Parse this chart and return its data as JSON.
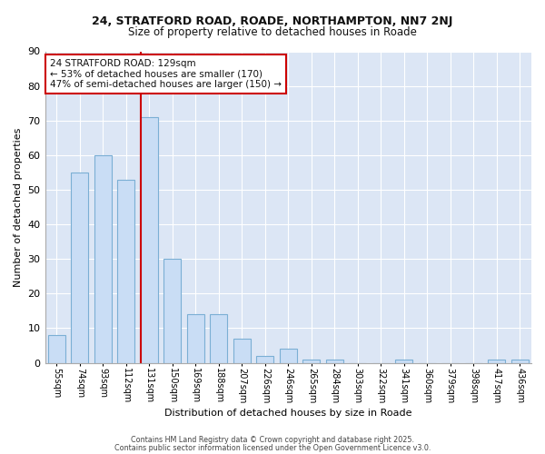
{
  "title_line1": "24, STRATFORD ROAD, ROADE, NORTHAMPTON, NN7 2NJ",
  "title_line2": "Size of property relative to detached houses in Roade",
  "xlabel": "Distribution of detached houses by size in Roade",
  "ylabel": "Number of detached properties",
  "categories": [
    "55sqm",
    "74sqm",
    "93sqm",
    "112sqm",
    "131sqm",
    "150sqm",
    "169sqm",
    "188sqm",
    "207sqm",
    "226sqm",
    "246sqm",
    "265sqm",
    "284sqm",
    "303sqm",
    "322sqm",
    "341sqm",
    "360sqm",
    "379sqm",
    "398sqm",
    "417sqm",
    "436sqm"
  ],
  "values": [
    8,
    55,
    60,
    53,
    71,
    30,
    14,
    14,
    7,
    2,
    4,
    1,
    1,
    0,
    0,
    1,
    0,
    0,
    0,
    1,
    1
  ],
  "bar_color": "#c9ddf5",
  "bar_edge_color": "#7bafd4",
  "red_line_index": 4,
  "red_line_color": "#cc0000",
  "annotation_text": "24 STRATFORD ROAD: 129sqm\n← 53% of detached houses are smaller (170)\n47% of semi-detached houses are larger (150) →",
  "annotation_box_color": "#ffffff",
  "annotation_border_color": "#cc0000",
  "ylim": [
    0,
    90
  ],
  "yticks": [
    0,
    10,
    20,
    30,
    40,
    50,
    60,
    70,
    80,
    90
  ],
  "plot_bg_color": "#dce6f5",
  "figure_bg_color": "#ffffff",
  "grid_color": "#ffffff",
  "footer_line1": "Contains HM Land Registry data © Crown copyright and database right 2025.",
  "footer_line2": "Contains public sector information licensed under the Open Government Licence v3.0."
}
